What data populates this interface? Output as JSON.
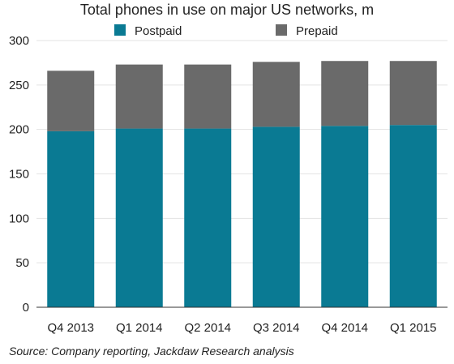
{
  "chart_data": {
    "type": "bar",
    "stacked": true,
    "title": "Total phones in use on major US networks, m",
    "categories": [
      "Q4 2013",
      "Q1 2014",
      "Q2 2014",
      "Q3 2014",
      "Q4 2014",
      "Q1 2015"
    ],
    "series": [
      {
        "name": "Postpaid",
        "color": "#0a7a93",
        "values": [
          198,
          201,
          201,
          203,
          204,
          205
        ]
      },
      {
        "name": "Prepaid",
        "color": "#6a6a6a",
        "values": [
          68,
          72,
          72,
          73,
          73,
          72
        ]
      }
    ],
    "ylim": [
      0,
      300
    ],
    "yticks": [
      0,
      50,
      100,
      150,
      200,
      250,
      300
    ],
    "grid": true,
    "legend_placement": "top",
    "source": "Source: Company reporting, Jackdaw Research analysis"
  }
}
